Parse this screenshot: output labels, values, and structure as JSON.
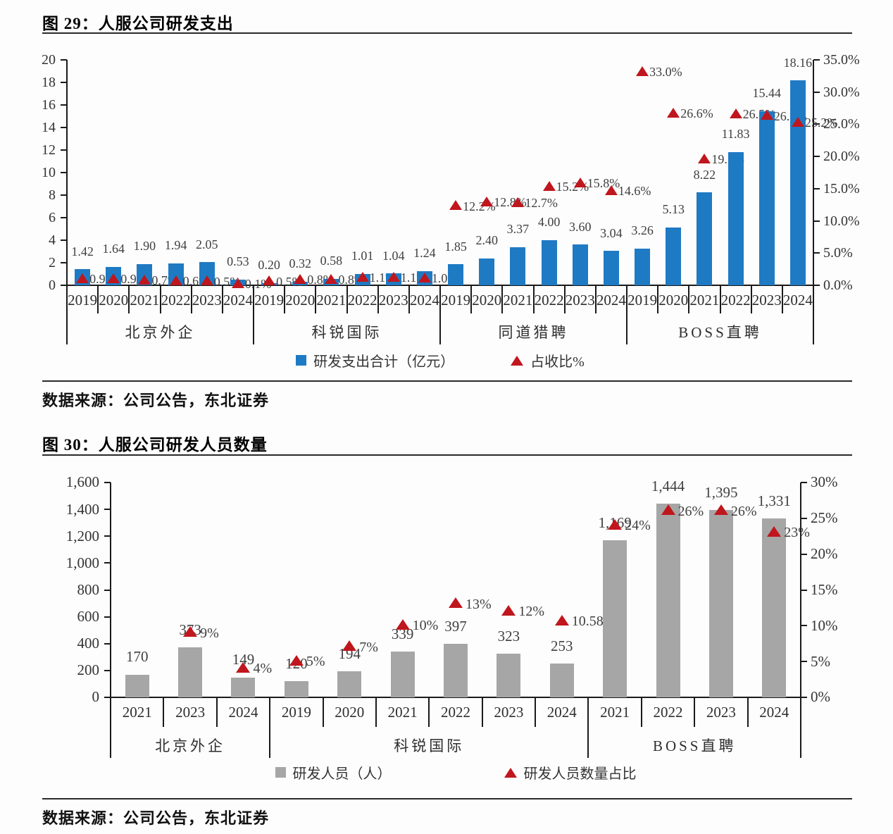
{
  "colors": {
    "bar_blue": "#1F7AC4",
    "bar_gray": "#A6A6A6",
    "triangle_red": "#C0161D"
  },
  "source_line": "数据来源：公司公告，东北证券",
  "chart_data": [
    {
      "type": "bar",
      "title": "图 29：人服公司研发支出",
      "bar_series_name": "研发支出合计（亿元）",
      "marker_series_name": "占收比%",
      "marker_type": "triangle",
      "grid": false,
      "left_axis": {
        "min": 0,
        "max": 20,
        "step": 2,
        "labels": [
          "20",
          "18",
          "16",
          "14",
          "12",
          "10",
          "8",
          "6",
          "4",
          "2",
          "0"
        ]
      },
      "right_axis": {
        "min": 0,
        "max": 35,
        "step": 5,
        "labels": [
          "35.0%",
          "30.0%",
          "25.0%",
          "20.0%",
          "15.0%",
          "10.0%",
          "5.0%",
          "0.0%"
        ]
      },
      "groups": [
        {
          "name": "北京外企",
          "years": [
            "2019",
            "2020",
            "2021",
            "2022",
            "2023",
            "2024"
          ],
          "bars": [
            1.42,
            1.64,
            1.9,
            1.94,
            2.05,
            0.53
          ],
          "bar_labels": [
            "1.42",
            "1.64",
            "1.90",
            "1.94",
            "2.05",
            "0.53"
          ],
          "pcts": [
            0.9,
            0.9,
            0.7,
            0.6,
            0.5,
            0.1
          ],
          "pct_labels": [
            "0.9%",
            "0.9%",
            "0.7%",
            "0.6%",
            "0.5%",
            "0.1%"
          ]
        },
        {
          "name": "科锐国际",
          "years": [
            "2019",
            "2020",
            "2021",
            "2022",
            "2023",
            "2024"
          ],
          "bars": [
            0.2,
            0.32,
            0.58,
            1.01,
            1.04,
            1.24
          ],
          "bar_labels": [
            "0.20",
            "0.32",
            "0.58",
            "1.01",
            "1.04",
            "1.24"
          ],
          "pcts": [
            0.5,
            0.8,
            0.8,
            1.1,
            1.1,
            1.0
          ],
          "pct_labels": [
            "0.5%",
            "0.8%",
            "0.8%",
            "1.1%",
            "1.1%",
            "1.0%"
          ]
        },
        {
          "name": "同道猎聘",
          "years": [
            "2019",
            "2020",
            "2021",
            "2022",
            "2023",
            "2024"
          ],
          "bars": [
            1.85,
            2.4,
            3.37,
            4.0,
            3.6,
            3.04
          ],
          "bar_labels": [
            "1.85",
            "2.40",
            "3.37",
            "4.00",
            "3.60",
            "3.04"
          ],
          "pcts": [
            12.2,
            12.8,
            12.7,
            15.2,
            15.8,
            14.6
          ],
          "pct_labels": [
            "12.2%",
            "12.8%",
            "12.7%",
            "15.2%",
            "15.8%",
            "14.6%"
          ]
        },
        {
          "name": "BOSS直聘",
          "years": [
            "2019",
            "2020",
            "2021",
            "2022",
            "2023",
            "2024"
          ],
          "bars": [
            3.26,
            5.13,
            8.22,
            11.83,
            15.44,
            18.16
          ],
          "bar_labels": [
            "3.26",
            "5.13",
            "8.22",
            "11.83",
            "15.44",
            "18.16"
          ],
          "pcts": [
            33.0,
            26.6,
            19.5,
            26.5,
            26.2,
            25.2
          ],
          "pct_labels": [
            "33.0%",
            "26.6%",
            "19.5%",
            "26.5%",
            "26.2%",
            "25.2%"
          ]
        }
      ]
    },
    {
      "type": "bar",
      "title": "图 30：人服公司研发人员数量",
      "bar_series_name": "研发人员（人）",
      "marker_series_name": "研发人员数量占比",
      "marker_type": "triangle",
      "grid": false,
      "left_axis": {
        "min": 0,
        "max": 1600,
        "step": 200,
        "labels": [
          "1,600",
          "1,400",
          "1,200",
          "1,000",
          "800",
          "600",
          "400",
          "200",
          "0"
        ]
      },
      "right_axis": {
        "min": 0,
        "max": 30,
        "step": 5,
        "labels": [
          "30%",
          "25%",
          "20%",
          "15%",
          "10%",
          "5%",
          "0%"
        ]
      },
      "groups": [
        {
          "name": "北京外企",
          "years": [
            "2021",
            "2023",
            "2024"
          ],
          "bars": [
            170,
            373,
            149
          ],
          "bar_labels": [
            "170",
            "373",
            "149"
          ],
          "pcts": [
            null,
            9,
            4
          ],
          "pct_labels": [
            "",
            "9%",
            "4%"
          ]
        },
        {
          "name": "科锐国际",
          "years": [
            "2019",
            "2020",
            "2021",
            "2022",
            "2023",
            "2024"
          ],
          "bars": [
            120,
            194,
            339,
            397,
            323,
            253
          ],
          "bar_labels": [
            "120",
            "194",
            "339",
            "397",
            "323",
            "253"
          ],
          "pcts": [
            5,
            7,
            10,
            13,
            12,
            10.58
          ],
          "pct_labels": [
            "5%",
            "7%",
            "10%",
            "13%",
            "12%",
            "10.58%"
          ]
        },
        {
          "name": "BOSS直聘",
          "years": [
            "2021",
            "2022",
            "2023",
            "2024"
          ],
          "bars": [
            1169,
            1444,
            1395,
            1331
          ],
          "bar_labels": [
            "1,169",
            "1,444",
            "1,395",
            "1,331"
          ],
          "pcts": [
            24,
            26,
            26,
            23
          ],
          "pct_labels": [
            "24%",
            "26%",
            "26%",
            "23%"
          ]
        }
      ]
    }
  ]
}
